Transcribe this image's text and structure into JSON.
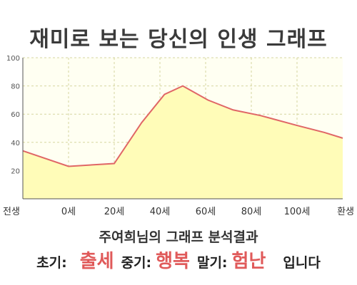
{
  "title": "재미로 보는 당신의 인생 그래프",
  "chart_data": {
    "type": "area",
    "x_labels": [
      "전생",
      "0세",
      "20세",
      "40세",
      "60세",
      "80세",
      "100세",
      "환생"
    ],
    "ylim": [
      0,
      100
    ],
    "y_ticks": [
      20,
      40,
      60,
      80,
      100
    ],
    "grid": true,
    "points": [
      {
        "x": 0,
        "y": 34
      },
      {
        "x": 1,
        "y": 23
      },
      {
        "x": 2,
        "y": 25
      },
      {
        "x": 2.6,
        "y": 54
      },
      {
        "x": 3.1,
        "y": 74
      },
      {
        "x": 3.5,
        "y": 80
      },
      {
        "x": 4.05,
        "y": 70
      },
      {
        "x": 4.6,
        "y": 63
      },
      {
        "x": 5.2,
        "y": 59
      },
      {
        "x": 6.0,
        "y": 52
      },
      {
        "x": 6.6,
        "y": 47
      },
      {
        "x": 7.0,
        "y": 43
      }
    ],
    "colors": {
      "line": "#e06666",
      "fill": "#fffcb8",
      "plot_bg": "#fffff2",
      "grid": "#d6d6a0"
    }
  },
  "result": {
    "name": "주여희님의 그래프 분석결과"
  },
  "summary": {
    "early_label": "초기:",
    "early_value": "출세",
    "mid_label": "중기:",
    "mid_value": "행복",
    "late_label": "말기:",
    "late_value": "험난",
    "tail": "입니다"
  }
}
